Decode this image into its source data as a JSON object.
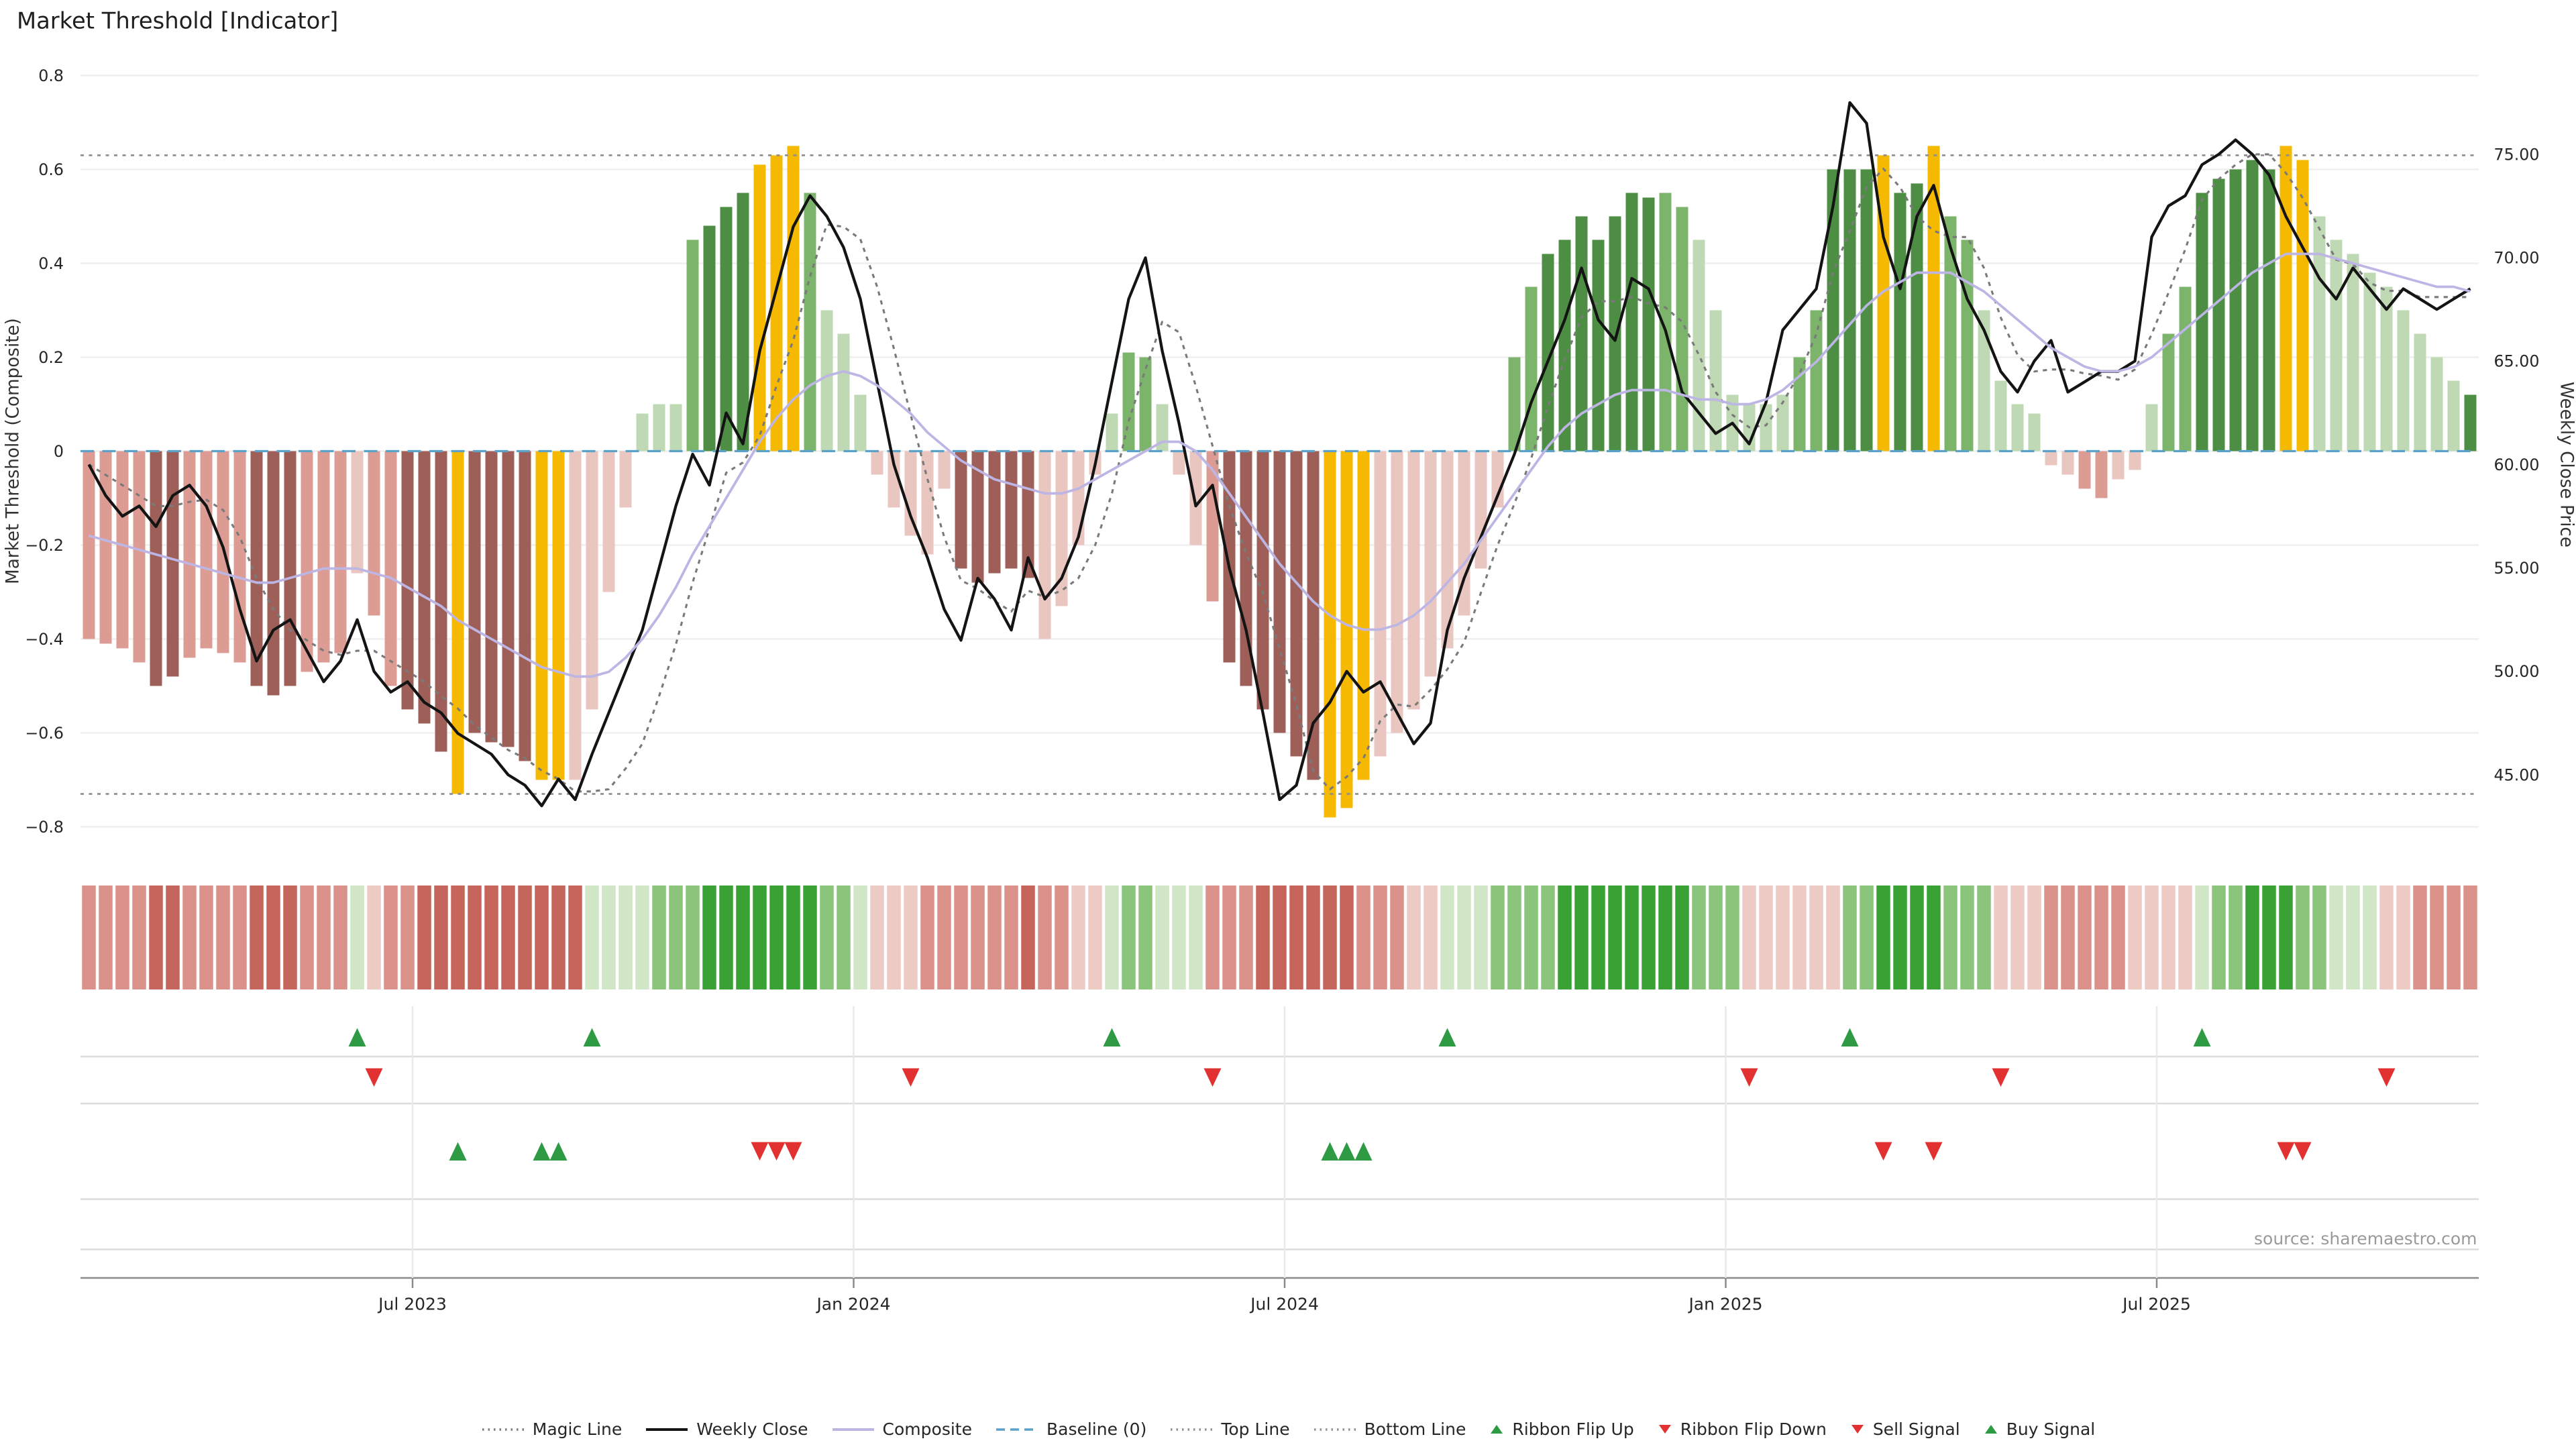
{
  "title": "Market Threshold [Indicator]",
  "source": "source: sharemaestro.com",
  "legend": {
    "items": [
      {
        "label": "Magic Line",
        "glyph": "dotted-line",
        "color": "#7a7a7a"
      },
      {
        "label": "Weekly Close",
        "glyph": "solid-line",
        "color": "#141414"
      },
      {
        "label": "Composite",
        "glyph": "solid-line",
        "color": "#bdb5e4"
      },
      {
        "label": "Baseline (0)",
        "glyph": "dashed-line",
        "color": "#5aa2c9"
      },
      {
        "label": "Top Line",
        "glyph": "dotted-line",
        "color": "#909090"
      },
      {
        "label": "Bottom Line",
        "glyph": "dotted-line",
        "color": "#909090"
      },
      {
        "label": "Ribbon Flip Up",
        "glyph": "triangle-up",
        "color": "#2e9b44"
      },
      {
        "label": "Ribbon Flip Down",
        "glyph": "triangle-down",
        "color": "#e23131"
      },
      {
        "label": "Sell Signal",
        "glyph": "triangle-down",
        "color": "#e23131"
      },
      {
        "label": "Buy Signal",
        "glyph": "triangle-up",
        "color": "#2e9b44"
      }
    ]
  },
  "chart_data": {
    "type": "bar",
    "title": "Market Threshold [Indicator]",
    "x_axis": {
      "ticks": [
        {
          "label": "Jul 2023",
          "week": 19.3
        },
        {
          "label": "Jan 2024",
          "week": 45.6
        },
        {
          "label": "Jul 2024",
          "week": 71.3
        },
        {
          "label": "Jan 2025",
          "week": 97.6
        },
        {
          "label": "Jul 2025",
          "week": 123.3
        }
      ]
    },
    "left_axis": {
      "title": "Market Threshold (Composite)",
      "range": [
        -0.8,
        0.8
      ],
      "ticks": [
        {
          "label": "0.8",
          "value": 0.8
        },
        {
          "label": "0.6",
          "value": 0.6
        },
        {
          "label": "0.4",
          "value": 0.4
        },
        {
          "label": "0.2",
          "value": 0.2
        },
        {
          "label": "0",
          "value": 0.0
        },
        {
          "label": "−0.2",
          "value": -0.2
        },
        {
          "label": "−0.4",
          "value": -0.4
        },
        {
          "label": "−0.6",
          "value": -0.6
        },
        {
          "label": "−0.8",
          "value": -0.8
        }
      ]
    },
    "right_axis": {
      "title": "Weekly Close Price",
      "range": [
        43,
        78
      ],
      "ticks": [
        {
          "label": "75.00",
          "value": 75
        },
        {
          "label": "70.00",
          "value": 70
        },
        {
          "label": "65.00",
          "value": 65
        },
        {
          "label": "60.00",
          "value": 60
        },
        {
          "label": "55.00",
          "value": 55
        },
        {
          "label": "50.00",
          "value": 50
        },
        {
          "label": "45.00",
          "value": 45
        }
      ]
    },
    "palette": {
      "lp": "#eac6c0",
      "p": "#dc9c94",
      "dr": "#9e5f59",
      "lg": "#bed9b3",
      "mg": "#7cb46c",
      "dg": "#4e8e44",
      "au": "#f5b901",
      "r1": "#eecac4",
      "r2": "#db928a",
      "r3": "#c6655c",
      "g1": "#d0e6c7",
      "g2": "#8bc47b",
      "g3": "#3aa235"
    },
    "bars": {
      "name": "Composite (weekly bars)",
      "axis": "left",
      "values": [
        -0.4,
        -0.41,
        -0.42,
        -0.45,
        -0.5,
        -0.48,
        -0.44,
        -0.42,
        -0.43,
        -0.45,
        -0.5,
        -0.52,
        -0.5,
        -0.47,
        -0.45,
        -0.43,
        -0.26,
        -0.35,
        -0.5,
        -0.55,
        -0.58,
        -0.64,
        -0.73,
        -0.6,
        -0.62,
        -0.63,
        -0.66,
        -0.7,
        -0.7,
        -0.7,
        -0.55,
        -0.3,
        -0.12,
        0.08,
        0.1,
        0.1,
        0.45,
        0.48,
        0.52,
        0.55,
        0.61,
        0.63,
        0.65,
        0.55,
        0.3,
        0.25,
        0.12,
        -0.05,
        -0.12,
        -0.18,
        -0.22,
        -0.08,
        -0.25,
        -0.28,
        -0.26,
        -0.25,
        -0.27,
        -0.4,
        -0.33,
        -0.2,
        -0.05,
        0.08,
        0.21,
        0.2,
        0.1,
        -0.05,
        -0.2,
        -0.32,
        -0.45,
        -0.5,
        -0.55,
        -0.6,
        -0.65,
        -0.7,
        -0.78,
        -0.76,
        -0.7,
        -0.65,
        -0.6,
        -0.55,
        -0.48,
        -0.42,
        -0.35,
        -0.25,
        -0.12,
        0.2,
        0.35,
        0.42,
        0.45,
        0.5,
        0.45,
        0.5,
        0.55,
        0.54,
        0.55,
        0.52,
        0.45,
        0.3,
        0.12,
        0.1,
        0.1,
        0.12,
        0.2,
        0.3,
        0.6,
        0.6,
        0.6,
        0.63,
        0.55,
        0.57,
        0.65,
        0.5,
        0.45,
        0.3,
        0.15,
        0.1,
        0.08,
        -0.03,
        -0.05,
        -0.08,
        -0.1,
        -0.06,
        -0.04,
        0.1,
        0.25,
        0.35,
        0.55,
        0.58,
        0.6,
        0.62,
        0.6,
        0.65,
        0.62,
        0.5,
        0.45,
        0.42,
        0.38,
        0.35,
        0.3,
        0.25,
        0.2,
        0.15,
        0.12
      ],
      "colors": [
        "p",
        "p",
        "p",
        "p",
        "dr",
        "dr",
        "p",
        "p",
        "p",
        "p",
        "dr",
        "dr",
        "dr",
        "p",
        "p",
        "p",
        "lp",
        "p",
        "p",
        "dr",
        "dr",
        "dr",
        "au",
        "dr",
        "dr",
        "dr",
        "dr",
        "au",
        "au",
        "lp",
        "lp",
        "lp",
        "lp",
        "lg",
        "lg",
        "lg",
        "mg",
        "dg",
        "dg",
        "dg",
        "au",
        "au",
        "au",
        "mg",
        "lg",
        "lg",
        "lg",
        "lp",
        "lp",
        "lp",
        "lp",
        "lp",
        "dr",
        "dr",
        "dr",
        "dr",
        "dr",
        "lp",
        "lp",
        "lp",
        "lp",
        "lg",
        "mg",
        "mg",
        "lg",
        "lp",
        "lp",
        "p",
        "dr",
        "dr",
        "dr",
        "dr",
        "dr",
        "dr",
        "au",
        "au",
        "au",
        "lp",
        "lp",
        "lp",
        "lp",
        "lp",
        "lp",
        "lp",
        "lp",
        "mg",
        "mg",
        "dg",
        "dg",
        "dg",
        "dg",
        "dg",
        "dg",
        "dg",
        "mg",
        "mg",
        "lg",
        "lg",
        "lg",
        "lg",
        "lg",
        "lg",
        "mg",
        "mg",
        "dg",
        "dg",
        "dg",
        "au",
        "dg",
        "dg",
        "au",
        "mg",
        "mg",
        "lg",
        "lg",
        "lg",
        "lg",
        "lp",
        "lp",
        "p",
        "p",
        "lp",
        "lp",
        "lg",
        "mg",
        "mg",
        "dg",
        "dg",
        "dg",
        "dg",
        "dg",
        "au",
        "au",
        "lg",
        "lg",
        "lg",
        "lg",
        "lg",
        "lg",
        "lg",
        "lg",
        "lg",
        "dg"
      ]
    },
    "lines": {
      "weekly_close": {
        "name": "Weekly Close",
        "axis": "right",
        "color": "#141414",
        "style": "solid",
        "values": [
          60.0,
          58.5,
          57.5,
          58.0,
          57.0,
          58.5,
          59.0,
          58.0,
          56.0,
          53.0,
          50.5,
          52.0,
          52.5,
          51.0,
          49.5,
          50.5,
          52.5,
          50.0,
          49.0,
          49.5,
          48.5,
          48.0,
          47.0,
          46.5,
          46.0,
          45.0,
          44.5,
          43.5,
          44.8,
          43.8,
          46.0,
          48.0,
          50.0,
          52.0,
          55.0,
          58.0,
          60.5,
          59.0,
          62.5,
          61.0,
          65.5,
          68.5,
          71.5,
          73.0,
          72.0,
          70.5,
          68.0,
          64.0,
          60.0,
          57.5,
          55.5,
          53.0,
          51.5,
          54.5,
          53.5,
          52.0,
          55.5,
          53.5,
          54.5,
          56.5,
          60.0,
          64.0,
          68.0,
          70.0,
          65.5,
          62.0,
          58.0,
          59.0,
          55.0,
          52.0,
          48.0,
          43.8,
          44.5,
          47.5,
          48.5,
          50.0,
          49.0,
          49.5,
          48.0,
          46.5,
          47.5,
          52.0,
          54.5,
          56.5,
          58.5,
          60.5,
          63.0,
          65.0,
          67.0,
          69.5,
          67.0,
          66.0,
          69.0,
          68.5,
          66.5,
          63.5,
          62.5,
          61.5,
          62.0,
          61.0,
          63.0,
          66.5,
          67.5,
          68.5,
          72.5,
          77.5,
          76.5,
          71.0,
          68.5,
          72.0,
          73.5,
          70.5,
          68.0,
          66.5,
          64.5,
          63.5,
          65.0,
          66.0,
          63.5,
          64.0,
          64.5,
          64.5,
          65.0,
          71.0,
          72.5,
          73.0,
          74.5,
          75.0,
          75.7,
          75.0,
          74.0,
          72.0,
          70.5,
          69.0,
          68.0,
          69.5,
          68.5,
          67.5,
          68.5,
          68.0,
          67.5,
          68.0,
          68.5
        ]
      },
      "composite": {
        "name": "Composite",
        "axis": "left",
        "color": "#bdb5e4",
        "style": "solid",
        "values": [
          -0.18,
          -0.19,
          -0.2,
          -0.21,
          -0.22,
          -0.23,
          -0.24,
          -0.25,
          -0.26,
          -0.27,
          -0.28,
          -0.28,
          -0.27,
          -0.26,
          -0.25,
          -0.25,
          -0.25,
          -0.26,
          -0.27,
          -0.29,
          -0.31,
          -0.33,
          -0.36,
          -0.38,
          -0.4,
          -0.42,
          -0.44,
          -0.46,
          -0.47,
          -0.48,
          -0.48,
          -0.47,
          -0.44,
          -0.4,
          -0.35,
          -0.29,
          -0.22,
          -0.16,
          -0.1,
          -0.04,
          0.02,
          0.07,
          0.11,
          0.14,
          0.16,
          0.17,
          0.16,
          0.14,
          0.11,
          0.08,
          0.04,
          0.01,
          -0.02,
          -0.04,
          -0.06,
          -0.07,
          -0.08,
          -0.09,
          -0.09,
          -0.08,
          -0.06,
          -0.04,
          -0.02,
          0.0,
          0.02,
          0.02,
          0.0,
          -0.04,
          -0.09,
          -0.14,
          -0.19,
          -0.24,
          -0.28,
          -0.32,
          -0.35,
          -0.37,
          -0.38,
          -0.38,
          -0.37,
          -0.35,
          -0.32,
          -0.28,
          -0.24,
          -0.19,
          -0.14,
          -0.09,
          -0.04,
          0.01,
          0.05,
          0.08,
          0.1,
          0.12,
          0.13,
          0.13,
          0.13,
          0.12,
          0.11,
          0.11,
          0.1,
          0.1,
          0.11,
          0.13,
          0.16,
          0.19,
          0.23,
          0.27,
          0.31,
          0.34,
          0.36,
          0.38,
          0.38,
          0.38,
          0.36,
          0.34,
          0.31,
          0.28,
          0.25,
          0.22,
          0.2,
          0.18,
          0.17,
          0.17,
          0.18,
          0.2,
          0.23,
          0.26,
          0.29,
          0.32,
          0.35,
          0.38,
          0.4,
          0.42,
          0.42,
          0.42,
          0.41,
          0.4,
          0.39,
          0.38,
          0.37,
          0.36,
          0.35,
          0.35,
          0.34
        ]
      },
      "magic": {
        "name": "Magic Line",
        "axis": "right",
        "color": "#7a7a7a",
        "style": "dotted",
        "values": [
          60.0,
          59.5,
          59.0,
          58.5,
          58.0,
          58.0,
          58.2,
          58.3,
          57.8,
          56.5,
          54.5,
          53.0,
          52.0,
          51.5,
          51.0,
          50.8,
          51.0,
          51.0,
          50.5,
          50.0,
          49.5,
          48.8,
          48.2,
          47.4,
          46.8,
          46.2,
          45.8,
          45.2,
          44.8,
          44.2,
          44.2,
          44.3,
          45.3,
          46.5,
          48.8,
          51.3,
          54.3,
          56.9,
          59.6,
          60.1,
          61.4,
          63.8,
          66.0,
          69.1,
          71.6,
          71.5,
          70.9,
          68.6,
          65.6,
          62.4,
          59.3,
          56.5,
          54.4,
          54.0,
          53.4,
          52.9,
          53.9,
          53.6,
          53.9,
          54.5,
          56.1,
          58.6,
          62.1,
          64.6,
          66.9,
          66.4,
          63.8,
          60.9,
          58.0,
          55.7,
          53.8,
          51.1,
          48.4,
          45.2,
          44.3,
          44.9,
          45.8,
          47.6,
          48.4,
          48.3,
          49.1,
          50.1,
          51.4,
          53.8,
          56.1,
          58.1,
          60.3,
          62.8,
          65.1,
          67.1,
          67.9,
          67.9,
          68.1,
          67.8,
          67.6,
          66.9,
          65.3,
          63.5,
          62.4,
          61.8,
          61.9,
          63.0,
          64.4,
          66.3,
          69.3,
          71.3,
          73.4,
          74.3,
          73.4,
          72.0,
          71.3,
          71.0,
          71.0,
          69.5,
          67.1,
          65.3,
          64.5,
          64.6,
          64.6,
          64.4,
          64.3,
          64.1,
          64.6,
          66.3,
          68.3,
          70.4,
          72.8,
          73.8,
          74.5,
          75.0,
          75.0,
          74.1,
          72.9,
          71.4,
          69.9,
          69.7,
          68.8,
          68.4,
          68.4,
          68.1,
          68.1,
          68.1,
          68.1
        ]
      },
      "baseline": {
        "name": "Baseline (0)",
        "axis": "left",
        "value": 0,
        "color": "#5aa2c9",
        "style": "dashed"
      },
      "top": {
        "name": "Top Line",
        "axis": "left",
        "value": 0.63,
        "color": "#909090",
        "style": "dotted"
      },
      "bottom": {
        "name": "Bottom Line",
        "axis": "left",
        "value": -0.73,
        "color": "#909090",
        "style": "dotted"
      }
    },
    "ribbon": {
      "colors": [
        "r2",
        "r2",
        "r2",
        "r2",
        "r3",
        "r3",
        "r2",
        "r2",
        "r2",
        "r2",
        "r3",
        "r3",
        "r3",
        "r2",
        "r2",
        "r2",
        "g1",
        "r1",
        "r2",
        "r2",
        "r3",
        "r3",
        "r3",
        "r3",
        "r3",
        "r3",
        "r3",
        "r3",
        "r3",
        "r3",
        "g1",
        "g1",
        "g1",
        "g1",
        "g2",
        "g2",
        "g2",
        "g3",
        "g3",
        "g3",
        "g3",
        "g3",
        "g3",
        "g3",
        "g2",
        "g2",
        "g1",
        "r1",
        "r1",
        "r1",
        "r2",
        "r2",
        "r2",
        "r2",
        "r2",
        "r2",
        "r3",
        "r2",
        "r2",
        "r1",
        "r1",
        "g1",
        "g2",
        "g2",
        "g1",
        "g1",
        "g1",
        "r2",
        "r2",
        "r2",
        "r3",
        "r3",
        "r3",
        "r3",
        "r3",
        "r3",
        "r2",
        "r2",
        "r2",
        "r1",
        "r1",
        "g1",
        "g1",
        "g1",
        "g2",
        "g2",
        "g2",
        "g2",
        "g3",
        "g3",
        "g3",
        "g3",
        "g3",
        "g3",
        "g3",
        "g3",
        "g2",
        "g2",
        "g2",
        "r1",
        "r1",
        "r1",
        "r1",
        "r1",
        "r1",
        "g2",
        "g2",
        "g3",
        "g3",
        "g3",
        "g3",
        "g2",
        "g2",
        "g2",
        "r1",
        "r1",
        "r1",
        "r2",
        "r2",
        "r2",
        "r2",
        "r2",
        "r1",
        "r1",
        "r1",
        "r1",
        "g1",
        "g2",
        "g2",
        "g3",
        "g3",
        "g3",
        "g2",
        "g2",
        "g1",
        "g1",
        "g1",
        "r1",
        "r1",
        "r2",
        "r2",
        "r2",
        "r2"
      ]
    },
    "signals": {
      "up_color": "#2e9b44",
      "down_color": "#e23131",
      "ribbon_flip_up_weeks": [
        16,
        30,
        61,
        81,
        105,
        126
      ],
      "ribbon_flip_down_weeks": [
        17,
        49,
        67,
        99,
        114,
        137
      ],
      "buy_weeks": [
        22,
        27,
        28,
        74,
        75,
        76
      ],
      "sell_weeks": [
        40,
        41,
        42,
        107,
        110,
        131,
        132
      ]
    }
  }
}
